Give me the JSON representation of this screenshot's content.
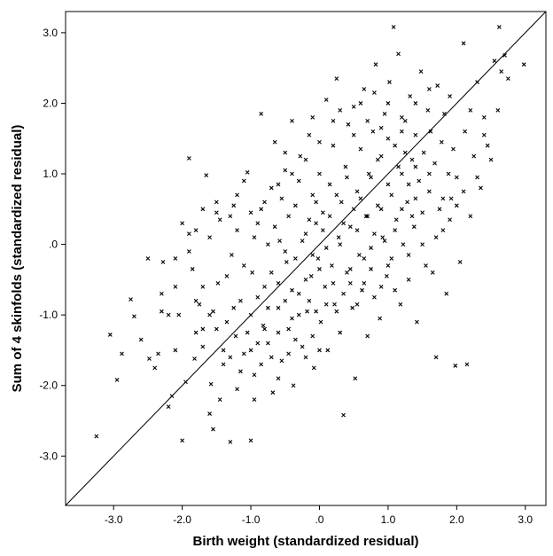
{
  "chart_data": {
    "type": "scatter",
    "title": "",
    "xlabel": "Birth weight (standardized residual)",
    "ylabel": "Sum of 4 skinfolds (standardized residual)",
    "xlim": [
      -3.7,
      3.3
    ],
    "ylim": [
      -3.7,
      3.3
    ],
    "x_ticks": [
      {
        "value": -3.0,
        "label": "-3.0"
      },
      {
        "value": -2.0,
        "label": "-2.0"
      },
      {
        "value": -1.0,
        "label": "-1.0"
      },
      {
        "value": 0.0,
        "label": ".0"
      },
      {
        "value": 1.0,
        "label": "1.0"
      },
      {
        "value": 2.0,
        "label": "2.0"
      },
      {
        "value": 3.0,
        "label": "3.0"
      }
    ],
    "y_ticks": [
      {
        "value": -3.0,
        "label": "-3.0"
      },
      {
        "value": -2.0,
        "label": "-2.0"
      },
      {
        "value": -1.0,
        "label": "-1.0"
      },
      {
        "value": 0.0,
        "label": ".0"
      },
      {
        "value": 1.0,
        "label": "1.0"
      },
      {
        "value": 2.0,
        "label": "2.0"
      },
      {
        "value": 3.0,
        "label": "3.0"
      }
    ],
    "grid": false,
    "reference_line": {
      "type": "identity",
      "slope": 1,
      "intercept": 0
    },
    "marker": "x",
    "marker_color": "#000000",
    "points": [
      [
        -3.25,
        -2.72
      ],
      [
        -3.05,
        -1.28
      ],
      [
        -2.95,
        -1.92
      ],
      [
        -2.88,
        -1.55
      ],
      [
        -2.75,
        -0.78
      ],
      [
        -2.7,
        -1.02
      ],
      [
        -2.6,
        -1.35
      ],
      [
        -2.5,
        -0.2
      ],
      [
        -2.48,
        -1.62
      ],
      [
        -2.4,
        -1.75
      ],
      [
        -2.35,
        -1.55
      ],
      [
        -2.3,
        -0.95
      ],
      [
        -2.28,
        -0.25
      ],
      [
        -2.2,
        -2.3
      ],
      [
        -2.15,
        -2.15
      ],
      [
        -2.1,
        -0.6
      ],
      [
        -2.05,
        -1.0
      ],
      [
        -2.0,
        -2.78
      ],
      [
        -1.95,
        -1.95
      ],
      [
        -1.9,
        1.22
      ],
      [
        -1.85,
        -0.35
      ],
      [
        -1.82,
        -1.62
      ],
      [
        -1.8,
        -1.25
      ],
      [
        -1.75,
        -0.85
      ],
      [
        -1.7,
        -1.45
      ],
      [
        -1.65,
        0.98
      ],
      [
        -1.6,
        -2.4
      ],
      [
        -1.58,
        -1.98
      ],
      [
        -1.55,
        -2.62
      ],
      [
        -1.5,
        0.45
      ],
      [
        -1.48,
        -0.55
      ],
      [
        -1.45,
        -2.2
      ],
      [
        -1.4,
        -1.7
      ],
      [
        -1.35,
        -1.1
      ],
      [
        -1.3,
        -2.8
      ],
      [
        -1.28,
        -0.15
      ],
      [
        -1.25,
        0.55
      ],
      [
        -1.22,
        -1.3
      ],
      [
        -1.2,
        -2.05
      ],
      [
        -1.15,
        -0.8
      ],
      [
        -1.1,
        -1.55
      ],
      [
        -1.05,
        1.02
      ],
      [
        -1.0,
        -2.78
      ],
      [
        -0.98,
        -0.4
      ],
      [
        -0.95,
        -1.85
      ],
      [
        -0.9,
        0.3
      ],
      [
        -0.85,
        1.85
      ],
      [
        -0.82,
        -1.15
      ],
      [
        -0.8,
        -0.6
      ],
      [
        -0.75,
        -1.4
      ],
      [
        -0.7,
        0.8
      ],
      [
        -0.68,
        -2.1
      ],
      [
        -0.65,
        1.45
      ],
      [
        -0.6,
        -0.9
      ],
      [
        -0.58,
        0.05
      ],
      [
        -0.55,
        -1.65
      ],
      [
        -0.5,
        1.05
      ],
      [
        -0.48,
        -0.25
      ],
      [
        -0.45,
        -1.2
      ],
      [
        -0.4,
        1.75
      ],
      [
        -0.38,
        -2.0
      ],
      [
        -0.35,
        0.55
      ],
      [
        -0.3,
        -0.7
      ],
      [
        -0.28,
        1.25
      ],
      [
        -0.25,
        -1.45
      ],
      [
        -0.2,
        0.15
      ],
      [
        -0.18,
        -0.95
      ],
      [
        -0.15,
        1.55
      ],
      [
        -0.12,
        -0.45
      ],
      [
        -0.1,
        0.7
      ],
      [
        -0.08,
        -1.75
      ],
      [
        -0.05,
        0.3
      ],
      [
        -0.02,
        -0.2
      ],
      [
        0.0,
        1.0
      ],
      [
        0.02,
        -1.1
      ],
      [
        0.05,
        0.45
      ],
      [
        0.08,
        -0.6
      ],
      [
        0.1,
        2.05
      ],
      [
        0.12,
        -1.5
      ],
      [
        0.15,
        0.85
      ],
      [
        0.18,
        -0.3
      ],
      [
        0.2,
        1.4
      ],
      [
        0.22,
        -0.85
      ],
      [
        0.25,
        2.35
      ],
      [
        0.28,
        0.1
      ],
      [
        0.3,
        -1.25
      ],
      [
        0.32,
        0.6
      ],
      [
        0.35,
        -2.42
      ],
      [
        0.38,
        1.1
      ],
      [
        0.4,
        -0.4
      ],
      [
        0.42,
        1.7
      ],
      [
        0.45,
        0.25
      ],
      [
        0.48,
        -0.9
      ],
      [
        0.5,
        1.95
      ],
      [
        0.52,
        -1.9
      ],
      [
        0.55,
        0.75
      ],
      [
        0.58,
        -0.15
      ],
      [
        0.6,
        1.35
      ],
      [
        0.62,
        -0.65
      ],
      [
        0.65,
        2.2
      ],
      [
        0.68,
        0.4
      ],
      [
        0.7,
        -1.3
      ],
      [
        0.72,
        1.0
      ],
      [
        0.75,
        -0.05
      ],
      [
        0.78,
        1.6
      ],
      [
        0.8,
        -0.75
      ],
      [
        0.82,
        2.55
      ],
      [
        0.85,
        0.55
      ],
      [
        0.88,
        -1.05
      ],
      [
        0.9,
        1.25
      ],
      [
        0.92,
        0.1
      ],
      [
        0.95,
        1.85
      ],
      [
        0.98,
        -0.45
      ],
      [
        1.0,
        0.85
      ],
      [
        1.02,
        2.3
      ],
      [
        1.05,
        -0.2
      ],
      [
        1.08,
        3.08
      ],
      [
        1.1,
        1.4
      ],
      [
        1.12,
        0.35
      ],
      [
        1.15,
        2.7
      ],
      [
        1.18,
        -0.85
      ],
      [
        1.2,
        1.0
      ],
      [
        1.22,
        0.0
      ],
      [
        1.25,
        1.75
      ],
      [
        1.28,
        0.6
      ],
      [
        1.3,
        -0.5
      ],
      [
        1.32,
        2.1
      ],
      [
        1.35,
        1.2
      ],
      [
        1.38,
        0.25
      ],
      [
        1.4,
        1.55
      ],
      [
        1.42,
        -1.1
      ],
      [
        1.45,
        0.9
      ],
      [
        1.48,
        2.45
      ],
      [
        1.5,
        0.45
      ],
      [
        1.52,
        1.3
      ],
      [
        1.55,
        -0.3
      ],
      [
        1.58,
        1.9
      ],
      [
        1.6,
        0.75
      ],
      [
        1.62,
        1.6
      ],
      [
        1.65,
        -0.4
      ],
      [
        1.68,
        1.15
      ],
      [
        1.7,
        -1.6
      ],
      [
        1.72,
        2.25
      ],
      [
        1.75,
        0.5
      ],
      [
        1.78,
        1.45
      ],
      [
        1.8,
        0.2
      ],
      [
        1.82,
        1.85
      ],
      [
        1.85,
        -0.7
      ],
      [
        1.88,
        1.0
      ],
      [
        1.9,
        2.1
      ],
      [
        1.92,
        0.65
      ],
      [
        1.95,
        1.35
      ],
      [
        1.98,
        -1.72
      ],
      [
        2.0,
        0.95
      ],
      [
        2.05,
        -0.25
      ],
      [
        2.1,
        2.85
      ],
      [
        2.12,
        1.6
      ],
      [
        2.15,
        -1.7
      ],
      [
        2.2,
        1.9
      ],
      [
        2.25,
        1.25
      ],
      [
        2.3,
        2.3
      ],
      [
        2.35,
        0.8
      ],
      [
        2.4,
        1.55
      ],
      [
        2.45,
        1.4
      ],
      [
        2.5,
        1.2
      ],
      [
        2.55,
        2.6
      ],
      [
        2.6,
        1.9
      ],
      [
        2.62,
        3.08
      ],
      [
        2.65,
        2.45
      ],
      [
        2.7,
        2.68
      ],
      [
        2.75,
        2.35
      ],
      [
        2.98,
        2.55
      ],
      [
        -2.0,
        0.3
      ],
      [
        -1.9,
        -0.1
      ],
      [
        -1.8,
        0.2
      ],
      [
        -1.7,
        -0.6
      ],
      [
        -1.6,
        0.1
      ],
      [
        -1.55,
        -0.95
      ],
      [
        -1.45,
        0.35
      ],
      [
        -1.35,
        -0.45
      ],
      [
        -1.25,
        -0.9
      ],
      [
        -1.2,
        0.2
      ],
      [
        -1.1,
        -0.3
      ],
      [
        -1.05,
        -1.25
      ],
      [
        -0.95,
        0.1
      ],
      [
        -0.9,
        -0.75
      ],
      [
        -0.85,
        0.5
      ],
      [
        -0.8,
        -1.2
      ],
      [
        -0.75,
        0.0
      ],
      [
        -0.7,
        -0.4
      ],
      [
        -0.65,
        0.25
      ],
      [
        -0.6,
        -0.55
      ],
      [
        -0.55,
        0.65
      ],
      [
        -0.5,
        -0.1
      ],
      [
        -0.45,
        0.4
      ],
      [
        -0.4,
        -0.65
      ],
      [
        -0.35,
        -0.2
      ],
      [
        -0.3,
        0.9
      ],
      [
        -0.25,
        0.05
      ],
      [
        -0.2,
        -0.5
      ],
      [
        -0.15,
        0.35
      ],
      [
        -0.1,
        -0.15
      ],
      [
        -0.05,
        0.6
      ],
      [
        0.0,
        -0.35
      ],
      [
        0.05,
        0.2
      ],
      [
        0.1,
        -0.05
      ],
      [
        0.15,
        0.4
      ],
      [
        0.2,
        -0.55
      ],
      [
        0.25,
        0.7
      ],
      [
        0.3,
        0.0
      ],
      [
        0.35,
        0.3
      ],
      [
        0.4,
        0.95
      ],
      [
        0.45,
        -0.35
      ],
      [
        0.5,
        0.5
      ],
      [
        0.55,
        0.2
      ],
      [
        0.6,
        0.65
      ],
      [
        0.65,
        -0.2
      ],
      [
        0.7,
        0.4
      ],
      [
        0.75,
        0.95
      ],
      [
        0.8,
        0.15
      ],
      [
        0.85,
        1.2
      ],
      [
        0.9,
        0.5
      ],
      [
        0.95,
        0.05
      ],
      [
        1.0,
        1.5
      ],
      [
        1.05,
        0.7
      ],
      [
        1.1,
        0.2
      ],
      [
        1.15,
        1.1
      ],
      [
        1.2,
        0.5
      ],
      [
        1.25,
        1.3
      ],
      [
        1.3,
        0.85
      ],
      [
        1.35,
        0.4
      ],
      [
        1.4,
        1.1
      ],
      [
        -1.3,
        -1.6
      ],
      [
        -1.15,
        -1.8
      ],
      [
        -1.0,
        -1.5
      ],
      [
        -0.95,
        -2.2
      ],
      [
        -0.85,
        -1.7
      ],
      [
        -0.7,
        -1.6
      ],
      [
        -0.6,
        -1.9
      ],
      [
        -0.45,
        -1.55
      ],
      [
        -0.35,
        -1.35
      ],
      [
        -0.2,
        -1.6
      ],
      [
        -0.1,
        -1.3
      ],
      [
        0.0,
        -1.5
      ],
      [
        -1.5,
        -1.2
      ],
      [
        -1.4,
        -1.5
      ],
      [
        -1.6,
        -1.0
      ],
      [
        -1.7,
        -1.2
      ],
      [
        -1.8,
        -0.8
      ],
      [
        -2.1,
        -1.5
      ],
      [
        -2.2,
        -1.0
      ],
      [
        -2.3,
        -0.7
      ],
      [
        -1.0,
        -1.0
      ],
      [
        -0.9,
        -1.4
      ],
      [
        -0.75,
        -0.9
      ],
      [
        -0.6,
        -1.25
      ],
      [
        -0.5,
        -0.8
      ],
      [
        -0.4,
        -1.05
      ],
      [
        -0.3,
        -1.0
      ],
      [
        -0.15,
        -0.8
      ],
      [
        -0.05,
        -0.95
      ],
      [
        0.1,
        -0.85
      ],
      [
        0.25,
        -0.95
      ],
      [
        0.35,
        -0.7
      ],
      [
        0.45,
        -0.55
      ],
      [
        0.55,
        -0.85
      ],
      [
        0.65,
        -0.55
      ],
      [
        0.75,
        -0.35
      ],
      [
        0.9,
        -0.6
      ],
      [
        1.0,
        -0.3
      ],
      [
        1.1,
        -0.65
      ],
      [
        1.3,
        -0.15
      ],
      [
        1.5,
        0.0
      ],
      [
        1.7,
        0.1
      ],
      [
        1.9,
        0.35
      ],
      [
        2.0,
        0.55
      ],
      [
        2.1,
        0.75
      ],
      [
        2.3,
        0.95
      ],
      [
        0.2,
        1.75
      ],
      [
        0.0,
        1.45
      ],
      [
        -0.2,
        1.2
      ],
      [
        -0.4,
        1.0
      ],
      [
        -0.6,
        0.85
      ],
      [
        -0.8,
        0.6
      ],
      [
        -1.0,
        0.45
      ],
      [
        -1.2,
        0.7
      ],
      [
        0.6,
        2.0
      ],
      [
        0.8,
        2.15
      ],
      [
        1.0,
        2.0
      ],
      [
        1.2,
        1.8
      ],
      [
        1.4,
        2.0
      ],
      [
        1.6,
        2.2
      ],
      [
        -0.5,
        1.3
      ],
      [
        -0.1,
        1.8
      ],
      [
        0.3,
        1.9
      ],
      [
        0.5,
        1.55
      ],
      [
        0.7,
        1.75
      ],
      [
        0.9,
        1.65
      ],
      [
        -1.1,
        0.9
      ],
      [
        -1.3,
        0.4
      ],
      [
        -1.5,
        0.6
      ],
      [
        -1.7,
        0.5
      ],
      [
        -1.9,
        0.15
      ],
      [
        -2.1,
        -0.2
      ],
      [
        1.8,
        0.65
      ],
      [
        2.2,
        0.4
      ],
      [
        2.4,
        1.8
      ],
      [
        1.6,
        1.0
      ],
      [
        1.4,
        0.65
      ],
      [
        1.2,
        1.6
      ]
    ]
  }
}
